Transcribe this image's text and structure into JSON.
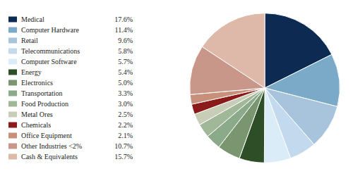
{
  "chart_data": {
    "type": "pie",
    "categories": [
      "Medical",
      "Computer Hardware",
      "Retail",
      "Telecommunications",
      "Computer Software",
      "Energy",
      "Electronics",
      "Transportation",
      "Food Production",
      "Metal Ores",
      "Chemicals",
      "Office Equipment",
      "Other Industries <2%",
      "Cash & Equivalents"
    ],
    "values": [
      17.6,
      11.4,
      9.6,
      5.8,
      5.7,
      5.4,
      5.0,
      3.3,
      3.0,
      2.5,
      2.2,
      2.1,
      10.7,
      15.7
    ],
    "value_labels": [
      "17.6%",
      "11.4%",
      "9.6%",
      "5.8%",
      "5.7%",
      "5.4%",
      "5.0%",
      "3.3%",
      "3.0%",
      "2.5%",
      "2.2%",
      "2.1%",
      "10.7%",
      "15.7%"
    ],
    "colors": [
      "#0d2b52",
      "#7aaac8",
      "#a8c4dc",
      "#c2d9ee",
      "#d9ecf7",
      "#2e4e28",
      "#7a9670",
      "#8aaa8a",
      "#a0b898",
      "#c8cdb8",
      "#8b1a1a",
      "#c8907a",
      "#c8978a",
      "#deb8a8"
    ],
    "legend": "left"
  }
}
